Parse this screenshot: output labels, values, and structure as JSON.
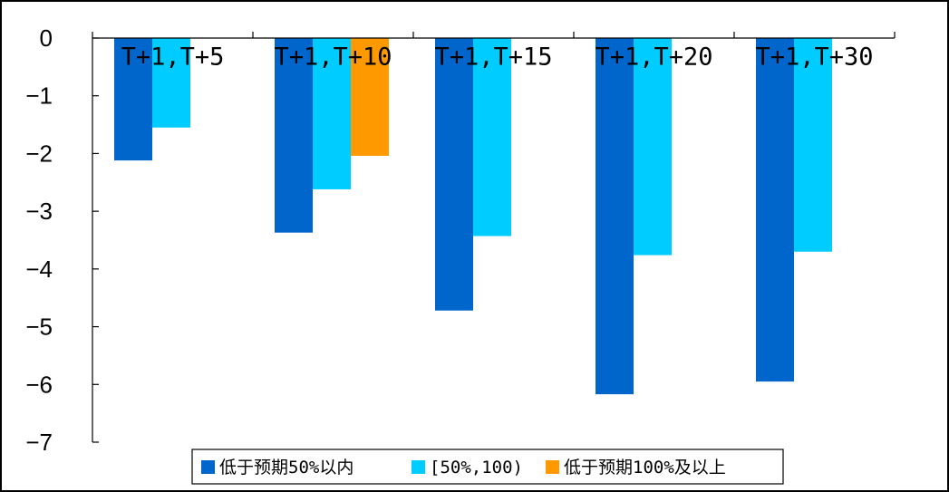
{
  "chart_data": {
    "type": "bar",
    "categories": [
      "T+1,T+5",
      "T+1,T+10",
      "T+1,T+15",
      "T+1,T+20",
      "T+1,T+30"
    ],
    "series": [
      {
        "name": "低于预期50%以内",
        "color": "#0066cc",
        "values": [
          -2.12,
          -3.37,
          -4.72,
          -6.17,
          -5.95
        ]
      },
      {
        "name": "[50%,100)",
        "color": "#00ccff",
        "values": [
          -1.55,
          -2.62,
          -3.43,
          -3.76,
          -3.7
        ]
      },
      {
        "name": "低于预期100%及以上",
        "color": "#ff9900",
        "values": [
          null,
          -2.04,
          null,
          null,
          null
        ]
      }
    ],
    "yticks": [
      "0",
      "-1",
      "-2",
      "-3",
      "-4",
      "-5",
      "-6",
      "-7"
    ],
    "ylim": [
      -7,
      0
    ],
    "legend_position": "bottom",
    "grid": false
  }
}
